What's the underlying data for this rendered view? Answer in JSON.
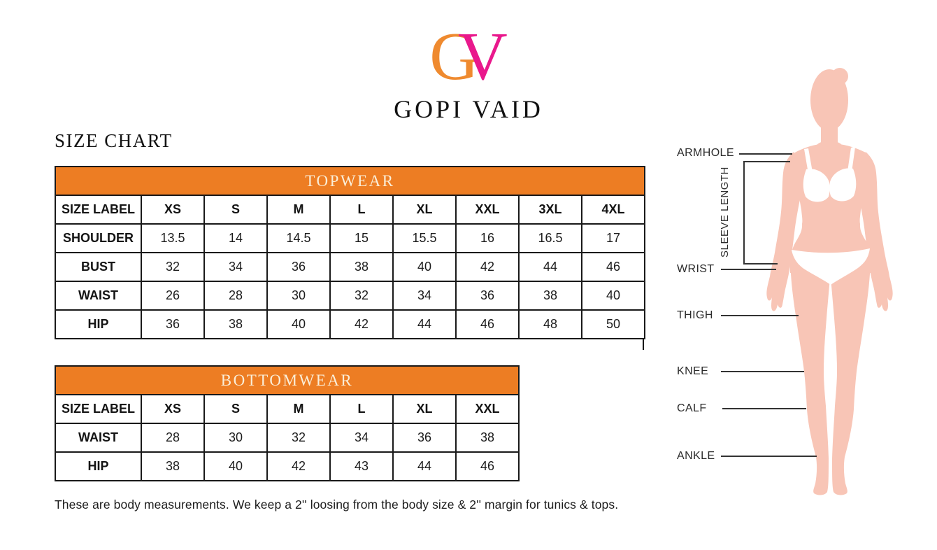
{
  "brand": {
    "logo_g": "G",
    "logo_v": "V",
    "name": "GOPI VAID"
  },
  "page_title": "SIZE CHART",
  "chart_data": [
    {
      "type": "table",
      "title": "TOPWEAR",
      "header": [
        "SIZE LABEL",
        "XS",
        "S",
        "M",
        "L",
        "XL",
        "XXL",
        "3XL",
        "4XL"
      ],
      "rows": [
        [
          "SHOULDER",
          "13.5",
          "14",
          "14.5",
          "15",
          "15.5",
          "16",
          "16.5",
          "17"
        ],
        [
          "BUST",
          "32",
          "34",
          "36",
          "38",
          "40",
          "42",
          "44",
          "46"
        ],
        [
          "WAIST",
          "26",
          "28",
          "30",
          "32",
          "34",
          "36",
          "38",
          "40"
        ],
        [
          "HIP",
          "36",
          "38",
          "40",
          "42",
          "44",
          "46",
          "48",
          "50"
        ]
      ]
    },
    {
      "type": "table",
      "title": "BOTTOMWEAR",
      "header": [
        "SIZE LABEL",
        "XS",
        "S",
        "M",
        "L",
        "XL",
        "XXL"
      ],
      "rows": [
        [
          "WAIST",
          "28",
          "30",
          "32",
          "34",
          "36",
          "38"
        ],
        [
          "HIP",
          "38",
          "40",
          "42",
          "43",
          "44",
          "46"
        ]
      ]
    }
  ],
  "note": "These are body measurements. We keep a 2'' loosing from the body size & 2'' margin for tunics & tops.",
  "figure_labels": {
    "armhole": "ARMHOLE",
    "sleeve_length": "SLEEVE LENGTH",
    "wrist": "WRIST",
    "thigh": "THIGH",
    "knee": "KNEE",
    "calf": "CALF",
    "ankle": "ANKLE"
  },
  "colors": {
    "table_header_orange": "#ED7D23",
    "table_header_text": "#FAEED8",
    "logo_orange": "#EF8A2F",
    "logo_pink": "#E9188C",
    "figure_skin": "#F8C5B6",
    "line_color": "#333333",
    "text_color": "#1c1c1c"
  }
}
